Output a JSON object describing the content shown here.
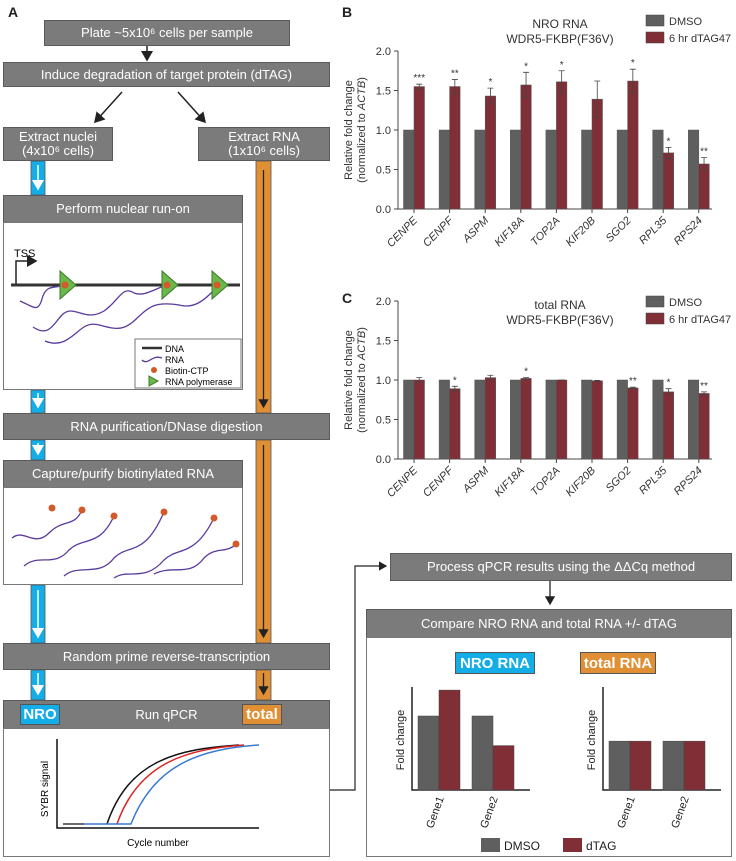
{
  "colors": {
    "header": "#7b7b7b",
    "dmso": "#5f5f5f",
    "dtag": "#7f2f35",
    "nro": "#13aee8",
    "total": "#e08f35"
  },
  "panel_labels": {
    "a": "A",
    "b": "B",
    "c": "C"
  },
  "flow": {
    "plate": "Plate ~5x10⁶ cells per sample",
    "induce": "Induce degradation of target protein (dTAG)",
    "nuclei_1": "Extract nuclei",
    "nuclei_2": "(4x10⁶ cells)",
    "rna_1": "Extract RNA",
    "rna_2": "(1x10⁶ cells)",
    "runon": "Perform nuclear run-on",
    "tss": "TSS",
    "legend": [
      "DNA",
      "RNA",
      "Biotin-CTP",
      "RNA polymerase"
    ],
    "purify": "RNA purification/DNase digestion",
    "capture": "Capture/purify biotinylated RNA",
    "rt": "Random prime reverse-transcription",
    "qpcr": "Run qPCR",
    "nro_tag": "NRO",
    "total_tag": "total",
    "qpcr_ylabel": "SYBR signal",
    "qpcr_xlabel": "Cycle number",
    "process": "Process qPCR results using the ΔΔCq method",
    "compare": "Compare NRO RNA and total RNA +/- dTAG",
    "nro_rna": "NRO RNA",
    "total_rna": "total RNA",
    "fold_change": "Fold change",
    "genes": [
      "Gene1",
      "Gene2"
    ],
    "legend_dmso": "DMSO",
    "legend_dtag": "dTAG"
  },
  "chart_data": [
    {
      "type": "bar",
      "id": "B",
      "title": [
        "NRO RNA",
        "WDR5-FKBP(F36V)"
      ],
      "ylabel": [
        "Relative fold change",
        "(normalized to ACTB)"
      ],
      "ylim": [
        0,
        2
      ],
      "yticks": [
        "0.0",
        "0.5",
        "1.0",
        "1.5",
        "2.0"
      ],
      "categories": [
        "CENPE",
        "CENPF",
        "ASPM",
        "KIF18A",
        "TOP2A",
        "KIF20B",
        "SGO2",
        "RPL35",
        "RPS24"
      ],
      "series": [
        {
          "name": "DMSO",
          "values": [
            1,
            1,
            1,
            1,
            1,
            1,
            1,
            1,
            1
          ]
        },
        {
          "name": "6 hr dTAG47",
          "values": [
            1.55,
            1.55,
            1.43,
            1.57,
            1.61,
            1.39,
            1.62,
            0.71,
            0.57
          ],
          "err": [
            0.03,
            0.09,
            0.1,
            0.16,
            0.14,
            0.23,
            0.15,
            0.07,
            0.08
          ]
        }
      ],
      "significance": [
        "***",
        "**",
        "*",
        "*",
        "*",
        "",
        "*",
        "*",
        "**"
      ],
      "legend": "top-right"
    },
    {
      "type": "bar",
      "id": "C",
      "title": [
        "total RNA",
        "WDR5-FKBP(F36V)"
      ],
      "ylabel": [
        "Relative fold change",
        "(normalized to ACTB)"
      ],
      "ylim": [
        0,
        2
      ],
      "yticks": [
        "0.0",
        "0.5",
        "1.0",
        "1.5",
        "2.0"
      ],
      "categories": [
        "CENPE",
        "CENPF",
        "ASPM",
        "KIF18A",
        "TOP2A",
        "KIF20B",
        "SGO2",
        "RPL35",
        "RPS24"
      ],
      "series": [
        {
          "name": "DMSO",
          "values": [
            1,
            1,
            1,
            1,
            1,
            1,
            1,
            1,
            1
          ]
        },
        {
          "name": "6 hr dTAG47",
          "values": [
            1.0,
            0.89,
            1.03,
            1.02,
            1.0,
            0.99,
            0.9,
            0.85,
            0.83
          ],
          "err": [
            0.03,
            0.03,
            0.03,
            0.01,
            0,
            0.005,
            0.01,
            0.04,
            0.02
          ]
        }
      ],
      "significance": [
        "",
        "*",
        "",
        "*",
        "",
        "",
        "**",
        "*",
        "**"
      ],
      "legend": "top-right"
    },
    {
      "type": "bar",
      "id": "mini-nro",
      "categories": [
        "Gene1",
        "Gene2"
      ],
      "series": [
        {
          "name": "DMSO",
          "values": [
            1,
            1
          ]
        },
        {
          "name": "dTAG",
          "values": [
            1.35,
            0.6
          ]
        }
      ]
    },
    {
      "type": "bar",
      "id": "mini-total",
      "categories": [
        "Gene1",
        "Gene2"
      ],
      "series": [
        {
          "name": "DMSO",
          "values": [
            1,
            1
          ]
        },
        {
          "name": "dTAG",
          "values": [
            1,
            1
          ]
        }
      ]
    }
  ]
}
